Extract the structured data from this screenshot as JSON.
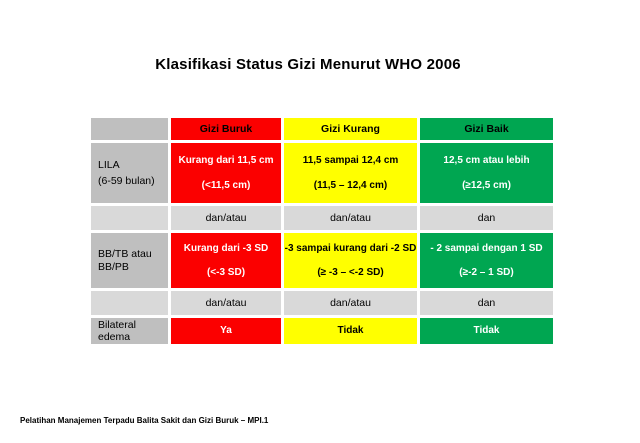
{
  "title": "Klasifikasi Status Gizi Menurut WHO 2006",
  "footer": "Pelatihan Manajemen Terpadu Balita Sakit dan Gizi Buruk – MPI.1",
  "colors": {
    "gizi_buruk_red": "#FB0000",
    "gizi_kurang_yellow": "#FFFF00",
    "gizi_baik_green": "#00A651",
    "label_gray": "#BFBFBF",
    "connector_gray": "#D9D9D9"
  },
  "table": {
    "header": {
      "corner": "",
      "buruk": "Gizi Buruk",
      "kurang": "Gizi Kurang",
      "baik": "Gizi Baik"
    },
    "lila": {
      "label_line1": "LILA",
      "label_line2": "(6-59 bulan)",
      "buruk_line1": "Kurang dari 11,5 cm",
      "buruk_line2": "(<11,5 cm)",
      "kurang_line1": "11,5 sampai 12,4 cm",
      "kurang_line2": "(11,5 – 12,4 cm)",
      "baik_line1": "12,5 cm atau lebih",
      "baik_line2": "(≥12,5 cm)"
    },
    "connector1": {
      "buruk": "dan/atau",
      "kurang": "dan/atau",
      "baik": "dan"
    },
    "bbtb": {
      "label_line1": "BB/TB atau",
      "label_line2": "BB/PB",
      "buruk_line1": "Kurang dari -3 SD",
      "buruk_line2": "(<-3 SD)",
      "kurang_line1": "-3 sampai kurang dari -2 SD",
      "kurang_line2": "(≥ -3 – <-2 SD)",
      "baik_line1": "- 2 sampai dengan 1 SD",
      "baik_line2": "(≥-2 – 1 SD)"
    },
    "connector2": {
      "buruk": "dan/atau",
      "kurang": "dan/atau",
      "baik": "dan"
    },
    "edema": {
      "label": "Bilateral edema",
      "buruk": "Ya",
      "kurang": "Tidak",
      "baik": "Tidak"
    }
  }
}
